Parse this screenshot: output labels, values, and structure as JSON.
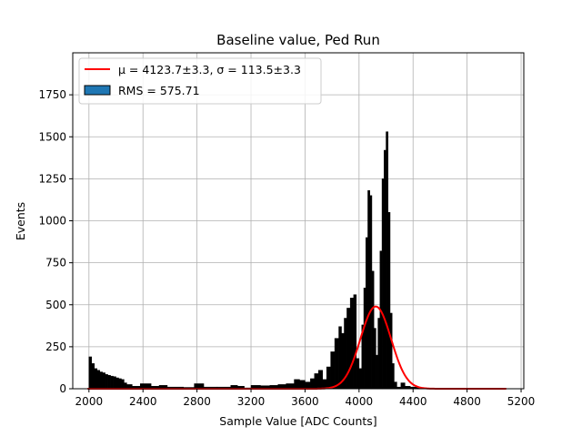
{
  "chart_data": {
    "type": "bar",
    "title": "Baseline value, Ped Run",
    "xlabel": "Sample Value [ADC Counts]",
    "ylabel": "Events",
    "xlim": [
      1880,
      5220
    ],
    "ylim": [
      0,
      2000
    ],
    "xticks": [
      2000,
      2400,
      2800,
      3200,
      3600,
      4000,
      4400,
      4800,
      5200
    ],
    "yticks": [
      0,
      250,
      500,
      750,
      1000,
      1250,
      1500,
      1750
    ],
    "grid": true,
    "legend_position": "top-left",
    "legend": [
      {
        "label": "μ = 4123.7±3.3, σ = 113.5±3.3",
        "kind": "line",
        "color": "#ff0000"
      },
      {
        "label": "RMS = 575.71",
        "kind": "patch",
        "color": "#1f77b4"
      }
    ],
    "histogram": {
      "name": "RMS = 575.71",
      "color": "#000000",
      "bins": [
        [
          2000,
          2020,
          190
        ],
        [
          2020,
          2040,
          150
        ],
        [
          2040,
          2060,
          120
        ],
        [
          2060,
          2080,
          110
        ],
        [
          2080,
          2100,
          100
        ],
        [
          2100,
          2120,
          95
        ],
        [
          2120,
          2140,
          85
        ],
        [
          2140,
          2160,
          80
        ],
        [
          2160,
          2180,
          75
        ],
        [
          2180,
          2200,
          72
        ],
        [
          2200,
          2220,
          65
        ],
        [
          2220,
          2240,
          60
        ],
        [
          2240,
          2260,
          55
        ],
        [
          2260,
          2280,
          35
        ],
        [
          2280,
          2320,
          25
        ],
        [
          2320,
          2380,
          15
        ],
        [
          2380,
          2460,
          30
        ],
        [
          2460,
          2520,
          15
        ],
        [
          2520,
          2580,
          20
        ],
        [
          2580,
          2700,
          10
        ],
        [
          2700,
          2780,
          8
        ],
        [
          2780,
          2850,
          30
        ],
        [
          2850,
          2950,
          10
        ],
        [
          2950,
          3050,
          10
        ],
        [
          3050,
          3100,
          20
        ],
        [
          3100,
          3150,
          15
        ],
        [
          3150,
          3200,
          5
        ],
        [
          3200,
          3270,
          20
        ],
        [
          3270,
          3340,
          18
        ],
        [
          3340,
          3400,
          20
        ],
        [
          3400,
          3460,
          25
        ],
        [
          3460,
          3520,
          30
        ],
        [
          3520,
          3560,
          55
        ],
        [
          3560,
          3600,
          50
        ],
        [
          3600,
          3640,
          40
        ],
        [
          3640,
          3670,
          60
        ],
        [
          3670,
          3700,
          90
        ],
        [
          3700,
          3730,
          110
        ],
        [
          3730,
          3760,
          55
        ],
        [
          3760,
          3790,
          130
        ],
        [
          3790,
          3820,
          220
        ],
        [
          3820,
          3850,
          300
        ],
        [
          3850,
          3870,
          370
        ],
        [
          3870,
          3890,
          330
        ],
        [
          3890,
          3910,
          420
        ],
        [
          3910,
          3935,
          480
        ],
        [
          3935,
          3960,
          540
        ],
        [
          3960,
          3980,
          560
        ],
        [
          3980,
          4000,
          180
        ],
        [
          4000,
          4020,
          120
        ],
        [
          4020,
          4035,
          380
        ],
        [
          4035,
          4050,
          600
        ],
        [
          4050,
          4065,
          900
        ],
        [
          4065,
          4080,
          1180
        ],
        [
          4080,
          4095,
          1150
        ],
        [
          4095,
          4110,
          700
        ],
        [
          4110,
          4125,
          360
        ],
        [
          4125,
          4140,
          200
        ],
        [
          4140,
          4155,
          420
        ],
        [
          4155,
          4170,
          820
        ],
        [
          4170,
          4185,
          1250
        ],
        [
          4185,
          4200,
          1420
        ],
        [
          4200,
          4215,
          1530
        ],
        [
          4215,
          4230,
          1050
        ],
        [
          4230,
          4245,
          450
        ],
        [
          4245,
          4260,
          150
        ],
        [
          4260,
          4280,
          40
        ],
        [
          4280,
          4310,
          10
        ],
        [
          4310,
          4340,
          35
        ],
        [
          4340,
          4380,
          15
        ],
        [
          4380,
          4440,
          10
        ],
        [
          4440,
          4480,
          5
        ]
      ]
    },
    "fit": {
      "name": "μ = 4123.7±3.3, σ = 113.5±3.3",
      "type": "gaussian",
      "mu": 4123.7,
      "sigma": 113.5,
      "amplitude": 490,
      "x_range": [
        1990,
        5090
      ],
      "color": "#ff0000"
    }
  }
}
